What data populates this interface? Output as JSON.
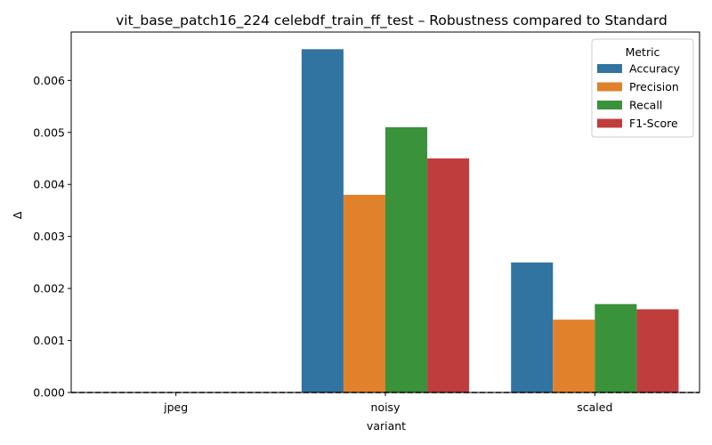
{
  "chart_data": {
    "type": "bar",
    "title": "vit_base_patch16_224 celebdf_train_ff_test – Robustness compared to Standard",
    "xlabel": "variant",
    "ylabel": "Δ",
    "categories": [
      "jpeg",
      "noisy",
      "scaled"
    ],
    "series": [
      {
        "name": "Accuracy",
        "color": "#3274a1",
        "values": [
          0.0,
          0.0066,
          0.0025
        ]
      },
      {
        "name": "Precision",
        "color": "#e1812c",
        "values": [
          0.0,
          0.0038,
          0.0014
        ]
      },
      {
        "name": "Recall",
        "color": "#3a923a",
        "values": [
          0.0,
          0.0051,
          0.0017
        ]
      },
      {
        "name": "F1-Score",
        "color": "#c03d3e",
        "values": [
          0.0,
          0.0045,
          0.0016
        ]
      }
    ],
    "ylim": [
      0,
      0.00693
    ],
    "yticks": [
      "0.000",
      "0.001",
      "0.002",
      "0.003",
      "0.004",
      "0.005",
      "0.006"
    ],
    "reference_line": {
      "y": 0,
      "style": "dashed"
    },
    "grid": false,
    "legend": {
      "title": "Metric",
      "position": "top-right"
    }
  }
}
